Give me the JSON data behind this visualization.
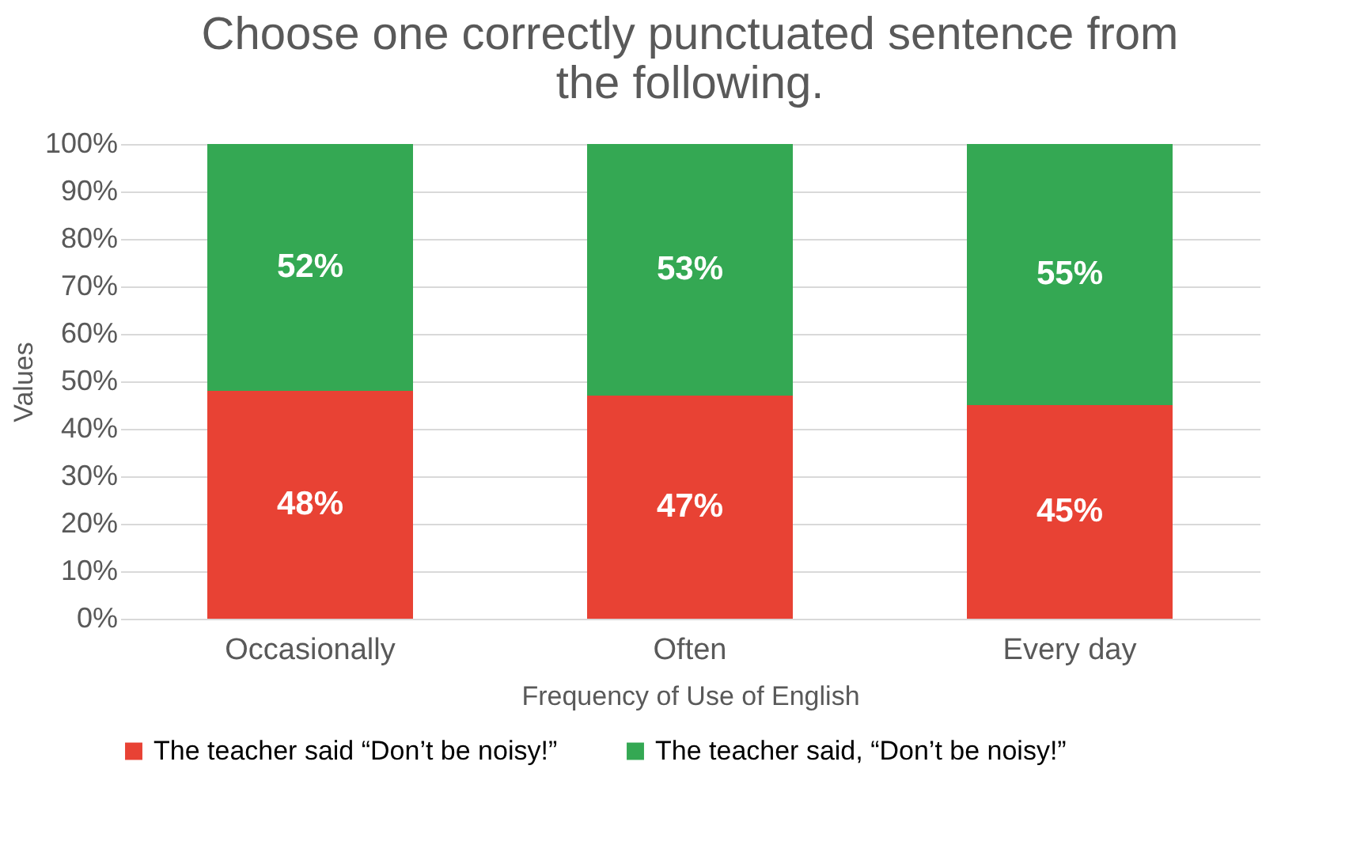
{
  "chart_data": {
    "type": "bar",
    "title": "Choose one correctly punctuated sentence from the following.",
    "xlabel": "Frequency of Use of English",
    "ylabel": "Values",
    "categories": [
      "Occasionally",
      "Often",
      "Every day"
    ],
    "stacked": true,
    "series": [
      {
        "name": "The teacher said “Don’t be noisy!”",
        "color": "#e84234",
        "values": [
          48,
          47,
          45
        ],
        "value_labels": [
          "48%",
          "47%",
          "45%"
        ]
      },
      {
        "name": "The teacher said, “Don’t be noisy!”",
        "color": "#34a853",
        "values": [
          52,
          53,
          55
        ],
        "value_labels": [
          "52%",
          "53%",
          "55%"
        ]
      }
    ],
    "ylim": [
      0,
      100
    ],
    "yticks": [
      {
        "value": 0,
        "label": "0%"
      },
      {
        "value": 10,
        "label": "10%"
      },
      {
        "value": 20,
        "label": "20%"
      },
      {
        "value": 30,
        "label": "30%"
      },
      {
        "value": 40,
        "label": "40%"
      },
      {
        "value": 50,
        "label": "50%"
      },
      {
        "value": 60,
        "label": "60%"
      },
      {
        "value": 70,
        "label": "70%"
      },
      {
        "value": 80,
        "label": "80%"
      },
      {
        "value": 90,
        "label": "90%"
      },
      {
        "value": 100,
        "label": "100%"
      }
    ],
    "grid": "y",
    "legend": "bottom"
  }
}
